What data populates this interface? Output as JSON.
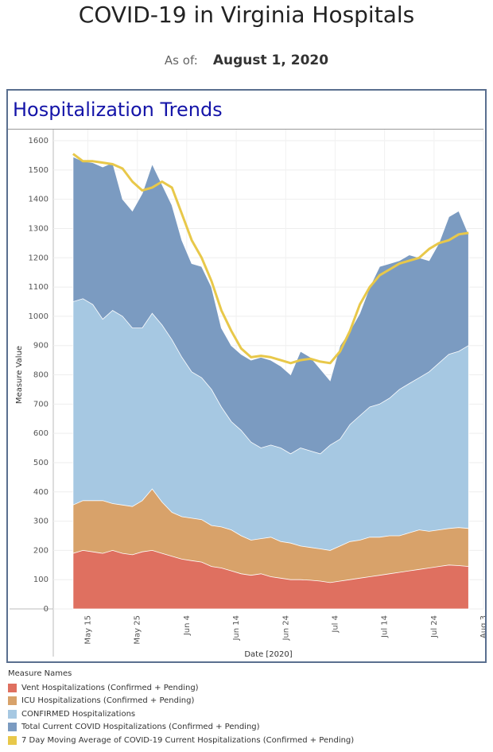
{
  "header": {
    "title": "COVID-19 in Virginia Hospitals",
    "as_of_label": "As of:",
    "as_of_date": "August 1, 2020"
  },
  "panel": {
    "title": "Hospitalization Trends"
  },
  "chart_data": {
    "type": "area",
    "xlabel": "Date [2020]",
    "ylabel": "Measure Value",
    "ylim": [
      0,
      1600
    ],
    "yticks": [
      0,
      100,
      200,
      300,
      400,
      500,
      600,
      700,
      800,
      900,
      1000,
      1100,
      1200,
      1300,
      1400,
      1500,
      1600
    ],
    "xlim": [
      "2020-05-08",
      "2020-08-03"
    ],
    "xticks": [
      {
        "date": "2020-05-15",
        "label": "May 15"
      },
      {
        "date": "2020-05-25",
        "label": "May 25"
      },
      {
        "date": "2020-06-04",
        "label": "Jun 4"
      },
      {
        "date": "2020-06-14",
        "label": "Jun 14"
      },
      {
        "date": "2020-06-24",
        "label": "Jun 24"
      },
      {
        "date": "2020-07-04",
        "label": "Jul 4"
      },
      {
        "date": "2020-07-14",
        "label": "Jul 14"
      },
      {
        "date": "2020-07-24",
        "label": "Jul 24"
      },
      {
        "date": "2020-08-03",
        "label": "Aug 3"
      }
    ],
    "grid": true,
    "x": [
      "2020-05-12",
      "2020-05-14",
      "2020-05-16",
      "2020-05-18",
      "2020-05-20",
      "2020-05-22",
      "2020-05-24",
      "2020-05-26",
      "2020-05-28",
      "2020-05-30",
      "2020-06-01",
      "2020-06-03",
      "2020-06-05",
      "2020-06-07",
      "2020-06-09",
      "2020-06-11",
      "2020-06-13",
      "2020-06-15",
      "2020-06-17",
      "2020-06-19",
      "2020-06-21",
      "2020-06-23",
      "2020-06-25",
      "2020-06-27",
      "2020-06-29",
      "2020-07-01",
      "2020-07-03",
      "2020-07-05",
      "2020-07-07",
      "2020-07-09",
      "2020-07-11",
      "2020-07-13",
      "2020-07-15",
      "2020-07-17",
      "2020-07-19",
      "2020-07-21",
      "2020-07-23",
      "2020-07-25",
      "2020-07-27",
      "2020-07-29",
      "2020-07-31"
    ],
    "series": [
      {
        "name": "Total Current COVID Hospitalizations (Confirmed + Pending)",
        "color": "#7b9bc1",
        "values": [
          1545,
          1530,
          1525,
          1510,
          1525,
          1400,
          1360,
          1420,
          1520,
          1450,
          1380,
          1260,
          1180,
          1170,
          1100,
          960,
          900,
          870,
          850,
          860,
          850,
          830,
          800,
          880,
          860,
          820,
          780,
          900,
          950,
          1010,
          1100,
          1170,
          1180,
          1190,
          1210,
          1200,
          1190,
          1250,
          1340,
          1360,
          1280
        ]
      },
      {
        "name": "CONFIRMED Hospitalizations",
        "color": "#a6c8e2",
        "values": [
          1050,
          1060,
          1040,
          990,
          1020,
          1000,
          960,
          960,
          1010,
          970,
          920,
          860,
          810,
          790,
          750,
          690,
          640,
          610,
          570,
          550,
          560,
          550,
          530,
          550,
          540,
          530,
          560,
          580,
          630,
          660,
          690,
          700,
          720,
          750,
          770,
          790,
          810,
          840,
          870,
          880,
          900
        ]
      },
      {
        "name": "ICU Hospitalizations (Confirmed + Pending)",
        "color": "#d8a26a",
        "values": [
          355,
          370,
          370,
          370,
          360,
          355,
          350,
          370,
          410,
          365,
          330,
          315,
          310,
          305,
          285,
          280,
          270,
          250,
          235,
          240,
          245,
          230,
          225,
          215,
          210,
          205,
          200,
          215,
          230,
          235,
          245,
          245,
          250,
          250,
          260,
          270,
          265,
          270,
          275,
          278,
          275
        ]
      },
      {
        "name": "Vent Hospitalizations (Confirmed + Pending)",
        "color": "#df7060",
        "values": [
          190,
          200,
          195,
          190,
          200,
          190,
          185,
          195,
          200,
          190,
          180,
          170,
          165,
          160,
          145,
          140,
          130,
          120,
          115,
          120,
          110,
          105,
          100,
          100,
          98,
          95,
          90,
          95,
          100,
          105,
          110,
          115,
          120,
          125,
          130,
          135,
          140,
          145,
          150,
          148,
          145
        ]
      },
      {
        "name": "7 Day Moving Average of COVID-19 Current Hospitalizations (Confirmed + Pending)",
        "color": "#e8c84a",
        "values": [
          1555,
          1530,
          1530,
          1525,
          1520,
          1505,
          1460,
          1430,
          1440,
          1460,
          1440,
          1350,
          1260,
          1200,
          1120,
          1020,
          950,
          890,
          860,
          865,
          860,
          850,
          840,
          850,
          855,
          845,
          840,
          880,
          950,
          1040,
          1100,
          1140,
          1160,
          1180,
          1190,
          1200,
          1230,
          1250,
          1260,
          1280,
          1285
        ]
      }
    ]
  },
  "legend": {
    "title": "Measure Names",
    "items": [
      {
        "label": "Vent Hospitalizations (Confirmed + Pending)",
        "color": "#df7060"
      },
      {
        "label": "ICU Hospitalizations (Confirmed + Pending)",
        "color": "#d8a26a"
      },
      {
        "label": "CONFIRMED Hospitalizations",
        "color": "#a6c8e2"
      },
      {
        "label": "Total Current COVID Hospitalizations (Confirmed + Pending)",
        "color": "#7b9bc1"
      },
      {
        "label": "7 Day Moving Average of COVID-19 Current Hospitalizations (Confirmed + Pending)",
        "color": "#e8c84a"
      }
    ]
  }
}
